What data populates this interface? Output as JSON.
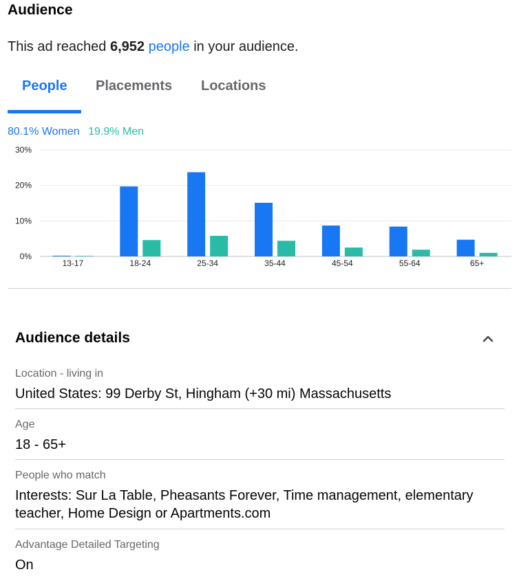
{
  "header": {
    "title": "Audience",
    "reach_prefix": "This ad reached ",
    "reach_count": "6,952",
    "reach_link": "people",
    "reach_suffix": " in your audience."
  },
  "tabs": [
    {
      "label": "People",
      "active": true
    },
    {
      "label": "Placements",
      "active": false
    },
    {
      "label": "Locations",
      "active": false
    }
  ],
  "legend": {
    "women": "80.1% Women",
    "men": "19.9% Men"
  },
  "colors": {
    "women": "#1877f2",
    "men": "#2abba7",
    "grid": "#e4e6eb",
    "axis": "#bcc0c4",
    "text": "#1c1e21"
  },
  "chart_data": {
    "type": "bar",
    "categories": [
      "13-17",
      "18-24",
      "25-34",
      "35-44",
      "45-54",
      "55-64",
      "65+"
    ],
    "series": [
      {
        "key": "women",
        "values": [
          0.2,
          19.7,
          23.7,
          15.1,
          8.7,
          8.4,
          4.7
        ]
      },
      {
        "key": "men",
        "values": [
          0.05,
          4.6,
          5.8,
          4.4,
          2.5,
          1.9,
          1.0
        ]
      }
    ],
    "y_ticks": [
      "0%",
      "10%",
      "20%",
      "30%"
    ],
    "ylim": [
      0,
      30
    ],
    "grid": true,
    "legend_position": "top-left"
  },
  "details": {
    "title": "Audience details",
    "rows": [
      {
        "label": "Location - living in",
        "value": "United States: 99 Derby St, Hingham (+30 mi) Massachusetts"
      },
      {
        "label": "Age",
        "value": "18 - 65+"
      },
      {
        "label": "People who match",
        "value": "Interests: Sur La Table, Pheasants Forever, Time management, elementary teacher, Home Design or Apartments.com"
      },
      {
        "label": "Advantage Detailed Targeting",
        "value": "On"
      }
    ]
  }
}
